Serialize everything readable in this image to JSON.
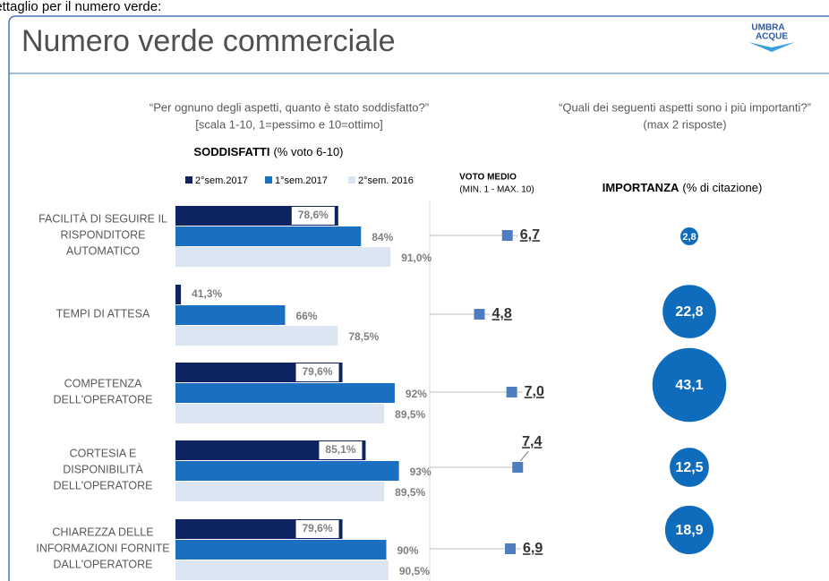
{
  "header": {
    "caption": "dettaglio per il numero verde:",
    "title": "Numero verde commerciale",
    "logo": [
      "UMBRA",
      "ACQUE"
    ]
  },
  "chart_data": [
    {
      "type": "bar",
      "question": [
        "“Per ognuno degli aspetti, quanto è stato soddisfatto?”",
        "[scala 1-10, 1=pessimo e 10=ottimo]"
      ],
      "title": "SODDISFATTI",
      "subtitle": "(% voto 6-10)",
      "categories": [
        [
          "FACILITÀ DI SEGUIRE IL",
          "RISPONDITORE",
          "AUTOMATICO"
        ],
        [
          "TEMPI DI ATTESA"
        ],
        [
          "COMPETENZA",
          "DELL'OPERATORE"
        ],
        [
          "CORTESIA E",
          "DISPONIBILITÀ",
          "DELL'OPERATORE"
        ],
        [
          "CHIAREZZA DELLE",
          "INFORMAZIONI FORNITE",
          "DALL'OPERATORE"
        ]
      ],
      "series": [
        {
          "name": "2°sem.2017",
          "color": "#0d2460",
          "values": [
            78.6,
            41.3,
            79.6,
            85.1,
            79.6
          ],
          "value_labels": [
            "78,6%",
            "41,3%",
            "79,6%",
            "85,1%",
            "79,6%"
          ]
        },
        {
          "name": "1°sem.2017",
          "color": "#1a6fc0",
          "values": [
            84,
            66,
            92,
            93,
            90
          ],
          "value_labels": [
            "84%",
            "66%",
            "92%",
            "93%",
            "90%"
          ]
        },
        {
          "name": "2°sem. 2016",
          "color": "#dce6f2",
          "values": [
            91.0,
            78.5,
            89.5,
            89.5,
            90.5
          ],
          "value_labels": [
            "91,0%",
            "78,5%",
            "89,5%",
            "89,5%",
            "90,5%"
          ]
        }
      ],
      "xlim": [
        40,
        100
      ]
    },
    {
      "type": "dot",
      "title": "VOTO MEDIO",
      "subtitle": "(MIN. 1 - MAX. 10)",
      "color": "#4e7ec0",
      "values": [
        6.7,
        4.8,
        7.0,
        7.4,
        6.9
      ],
      "value_labels": [
        "6,7",
        "4,8",
        "7,0",
        "7,4",
        "6,9"
      ],
      "xlim": [
        1,
        10
      ]
    },
    {
      "type": "bubble",
      "question": [
        "“Quali dei seguenti aspetti sono i più importanti?”",
        "(max 2 risposte)"
      ],
      "title": "IMPORTANZA",
      "subtitle": "(% di citazione)",
      "color": "#0f6cbd",
      "values": [
        2.8,
        22.8,
        43.1,
        12.5,
        18.9
      ],
      "value_labels": [
        "2,8",
        "22,8",
        "43,1",
        "12,5",
        "18,9"
      ]
    }
  ]
}
